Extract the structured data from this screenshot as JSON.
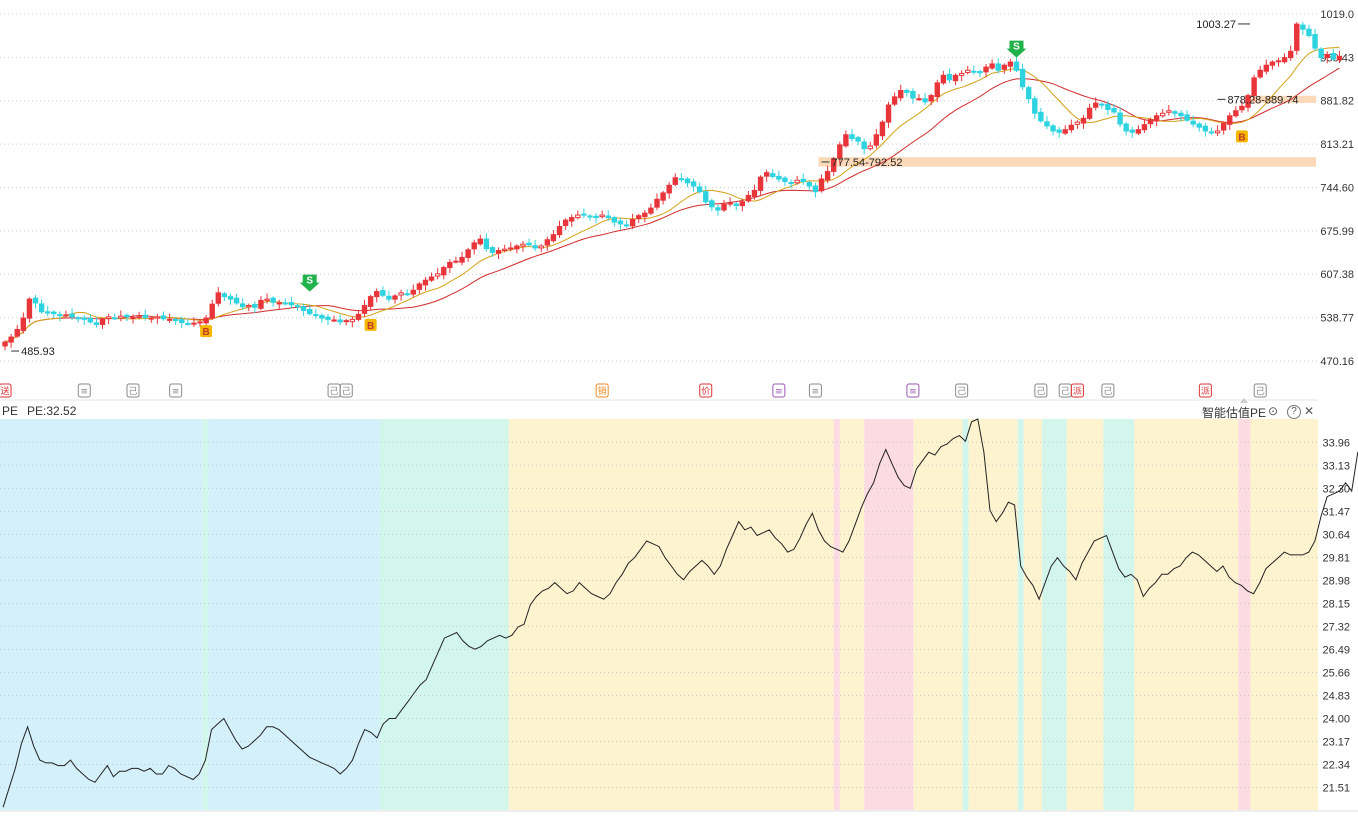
{
  "header": {
    "left_label": "PE",
    "pe_readout": "PE:32.52",
    "indicator_title": "智能估值PE",
    "controls": [
      {
        "name": "settings-icon",
        "glyph": "⊙"
      },
      {
        "name": "help-icon",
        "glyph": "?"
      },
      {
        "name": "close-icon",
        "glyph": "✕"
      }
    ]
  },
  "colors": {
    "up": "#e8353a",
    "down": "#2ed3e0",
    "ma_fast": "#d4a017",
    "ma_slow": "#d22b2b",
    "zone_deep_under": "#d3f0fb",
    "zone_under": "#d3f6ec",
    "zone_fair": "#fdf3cf",
    "zone_over": "#fddbe3",
    "support_band": "#fcd9b8",
    "buy_marker": "#f5b800",
    "sell_marker": "#22b24c"
  },
  "chart_data": [
    {
      "type": "candlestick",
      "y_ticks": [
        "1019.0",
        "950.43",
        "881.82",
        "813.21",
        "744.60",
        "675.99",
        "607.38",
        "538.77",
        "470.16"
      ],
      "ylim": [
        470.16,
        1019.0
      ],
      "x_count": 215,
      "close": [
        500,
        508,
        520,
        538,
        568,
        562,
        548,
        546,
        545,
        542,
        543,
        540,
        538,
        536,
        532,
        528,
        536,
        540,
        538,
        541,
        540,
        539,
        541,
        539,
        538,
        540,
        537,
        536,
        534,
        531,
        529,
        530,
        532,
        538,
        560,
        578,
        572,
        568,
        562,
        556,
        558,
        555,
        566,
        568,
        563,
        562,
        561,
        559,
        556,
        550,
        545,
        542,
        538,
        536,
        535,
        532,
        534,
        536,
        544,
        558,
        572,
        580,
        574,
        568,
        573,
        578,
        576,
        582,
        592,
        598,
        603,
        608,
        618,
        626,
        628,
        634,
        646,
        657,
        663,
        648,
        642,
        645,
        647,
        649,
        652,
        655,
        654,
        649,
        652,
        662,
        670,
        683,
        693,
        697,
        701,
        701,
        699,
        697,
        701,
        697,
        690,
        687,
        684,
        694,
        700,
        704,
        712,
        726,
        736,
        748,
        760,
        758,
        752,
        747,
        738,
        722,
        714,
        709,
        718,
        720,
        716,
        722,
        732,
        740,
        761,
        768,
        762,
        758,
        754,
        752,
        756,
        754,
        747,
        738,
        758,
        770,
        790,
        812,
        828,
        822,
        818,
        806,
        810,
        828,
        848,
        875,
        888,
        898,
        895,
        886,
        885,
        880,
        890,
        910,
        922,
        915,
        922,
        925,
        930,
        928,
        926,
        935,
        940,
        930,
        938,
        943,
        930,
        904,
        885,
        862,
        850,
        842,
        834,
        832,
        836,
        843,
        848,
        854,
        870,
        878,
        876,
        868,
        864,
        845,
        834,
        832,
        836,
        844,
        852,
        858,
        862,
        866,
        862,
        858,
        851,
        845,
        840,
        834,
        831,
        834,
        846,
        858,
        866,
        873,
        890,
        918,
        930,
        938,
        943,
        945,
        950,
        960,
        1003,
        995,
        985,
        965,
        950,
        955,
        948,
        952
      ],
      "ma_fast_label": "",
      "annotations": [
        {
          "text": "485.93",
          "index": 1,
          "value": 485.93
        },
        {
          "text": "777.54-792.52",
          "index": 134,
          "value": 785
        },
        {
          "text": "878.28-889.74",
          "index": 199,
          "value": 884
        },
        {
          "text": "1003.27",
          "index": 204,
          "value": 1003.27
        }
      ],
      "support_bands": [
        {
          "from_index": 134,
          "to_index": 214,
          "low": 777.54,
          "high": 792.52
        },
        {
          "from_index": 204,
          "to_index": 214,
          "low": 878.28,
          "high": 889.74
        }
      ],
      "signals": [
        {
          "type": "B",
          "index": 33,
          "value": 530
        },
        {
          "type": "S",
          "index": 50,
          "value": 572
        },
        {
          "type": "B",
          "index": 60,
          "value": 540
        },
        {
          "type": "S",
          "index": 166,
          "value": 942
        },
        {
          "type": "B",
          "index": 203,
          "value": 838
        }
      ]
    },
    {
      "type": "line",
      "title": "智能估值PE",
      "y_ticks": [
        "33.96",
        "33.13",
        "32.30",
        "31.47",
        "30.64",
        "29.81",
        "28.98",
        "28.15",
        "27.32",
        "26.49",
        "25.66",
        "24.83",
        "24.00",
        "23.17",
        "22.34",
        "21.51"
      ],
      "ylim": [
        20.7,
        34.8
      ],
      "series": [
        {
          "values": [
            20.8,
            21.5,
            22.2,
            23.1,
            23.7,
            23.0,
            22.5,
            22.4,
            22.4,
            22.3,
            22.3,
            22.5,
            22.2,
            22.0,
            21.8,
            21.7,
            22.0,
            22.3,
            21.9,
            22.1,
            22.1,
            22.2,
            22.2,
            22.1,
            22.2,
            22.0,
            22.0,
            22.3,
            22.2,
            22.0,
            21.9,
            21.8,
            22.0,
            22.5,
            23.6,
            23.8,
            24.0,
            23.6,
            23.2,
            22.9,
            23.0,
            23.2,
            23.4,
            23.7,
            23.7,
            23.6,
            23.4,
            23.2,
            23.0,
            22.8,
            22.6,
            22.5,
            22.4,
            22.3,
            22.2,
            22.0,
            22.2,
            22.5,
            23.1,
            23.6,
            23.5,
            23.3,
            23.8,
            24.0,
            24.0,
            24.3,
            24.6,
            24.9,
            25.2,
            25.4,
            25.9,
            26.4,
            26.9,
            27.0,
            27.1,
            26.8,
            26.6,
            26.5,
            26.6,
            26.8,
            26.9,
            27.0,
            26.9,
            27.0,
            27.3,
            27.4,
            28.1,
            28.4,
            28.6,
            28.7,
            28.9,
            28.7,
            28.5,
            28.6,
            28.9,
            28.7,
            28.5,
            28.4,
            28.3,
            28.5,
            28.9,
            29.2,
            29.6,
            29.8,
            30.1,
            30.4,
            30.3,
            30.2,
            29.8,
            29.5,
            29.2,
            29.0,
            29.3,
            29.5,
            29.7,
            29.5,
            29.2,
            29.5,
            30.1,
            30.6,
            31.1,
            30.8,
            30.9,
            30.6,
            30.7,
            30.8,
            30.5,
            30.3,
            30.0,
            30.1,
            30.5,
            31.0,
            31.4,
            30.8,
            30.4,
            30.2,
            30.1,
            30.0,
            30.4,
            31.0,
            31.6,
            32.1,
            32.5,
            33.2,
            33.7,
            33.2,
            32.7,
            32.4,
            32.3,
            33.0,
            33.3,
            33.6,
            33.5,
            33.8,
            33.9,
            34.1,
            34.2,
            34.0,
            34.7,
            34.8,
            33.6,
            31.5,
            31.1,
            31.4,
            31.8,
            31.7,
            29.5,
            29.1,
            28.8,
            28.3,
            28.9,
            29.5,
            29.8,
            29.5,
            29.3,
            29.0,
            29.6,
            30.0,
            30.4,
            30.5,
            30.6,
            30.0,
            29.4,
            29.1,
            29.2,
            29.0,
            28.4,
            28.7,
            28.9,
            29.2,
            29.2,
            29.4,
            29.5,
            29.8,
            30.0,
            29.9,
            29.7,
            29.5,
            29.3,
            29.5,
            29.1,
            28.9,
            28.8,
            28.6,
            28.5,
            28.9,
            29.4,
            29.6,
            29.8,
            30.0,
            29.9,
            29.9,
            29.9,
            30.0,
            30.4,
            31.3,
            32.0,
            32.1,
            32.2,
            32.5,
            32.2,
            33.6,
            33.8,
            32.8,
            32.5,
            32.4,
            32.5,
            32.52
          ]
        }
      ],
      "zones": [
        {
          "label": "deep_under",
          "from": 0,
          "to": 33
        },
        {
          "label": "under",
          "from": 33,
          "to": 34
        },
        {
          "label": "deep_under",
          "from": 34,
          "to": 62
        },
        {
          "label": "under",
          "from": 62,
          "to": 83
        },
        {
          "label": "fair",
          "from": 83,
          "to": 136
        },
        {
          "label": "over",
          "from": 136,
          "to": 137
        },
        {
          "label": "fair",
          "from": 137,
          "to": 141
        },
        {
          "label": "over",
          "from": 141,
          "to": 149
        },
        {
          "label": "fair",
          "from": 149,
          "to": 157
        },
        {
          "label": "under",
          "from": 157,
          "to": 158
        },
        {
          "label": "fair",
          "from": 158,
          "to": 166
        },
        {
          "label": "under",
          "from": 166,
          "to": 167
        },
        {
          "label": "fair",
          "from": 167,
          "to": 170
        },
        {
          "label": "under",
          "from": 170,
          "to": 174
        },
        {
          "label": "fair",
          "from": 174,
          "to": 180
        },
        {
          "label": "under",
          "from": 180,
          "to": 185
        },
        {
          "label": "fair",
          "from": 185,
          "to": 202
        },
        {
          "label": "over",
          "from": 202,
          "to": 204
        },
        {
          "label": "fair",
          "from": 204,
          "to": 215
        }
      ]
    }
  ],
  "event_markers": [
    {
      "index": 0,
      "glyph": "送",
      "color": "#d33"
    },
    {
      "index": 13,
      "glyph": "≡",
      "color": "#888"
    },
    {
      "index": 21,
      "glyph": "己",
      "color": "#888"
    },
    {
      "index": 28,
      "glyph": "≡",
      "color": "#888"
    },
    {
      "index": 54,
      "glyph": "己",
      "color": "#888"
    },
    {
      "index": 56,
      "glyph": "己",
      "color": "#888"
    },
    {
      "index": 98,
      "glyph": "销",
      "color": "#f08a24"
    },
    {
      "index": 115,
      "glyph": "价",
      "color": "#d33"
    },
    {
      "index": 127,
      "glyph": "≡",
      "color": "#9b59b6"
    },
    {
      "index": 133,
      "glyph": "≡",
      "color": "#888"
    },
    {
      "index": 149,
      "glyph": "≡",
      "color": "#9b59b6"
    },
    {
      "index": 157,
      "glyph": "己",
      "color": "#888"
    },
    {
      "index": 170,
      "glyph": "己",
      "color": "#888"
    },
    {
      "index": 174,
      "glyph": "己",
      "color": "#888"
    },
    {
      "index": 176,
      "glyph": "派",
      "color": "#d33"
    },
    {
      "index": 181,
      "glyph": "己",
      "color": "#888"
    },
    {
      "index": 197,
      "glyph": "派",
      "color": "#d33"
    },
    {
      "index": 206,
      "glyph": "己",
      "color": "#888"
    }
  ]
}
